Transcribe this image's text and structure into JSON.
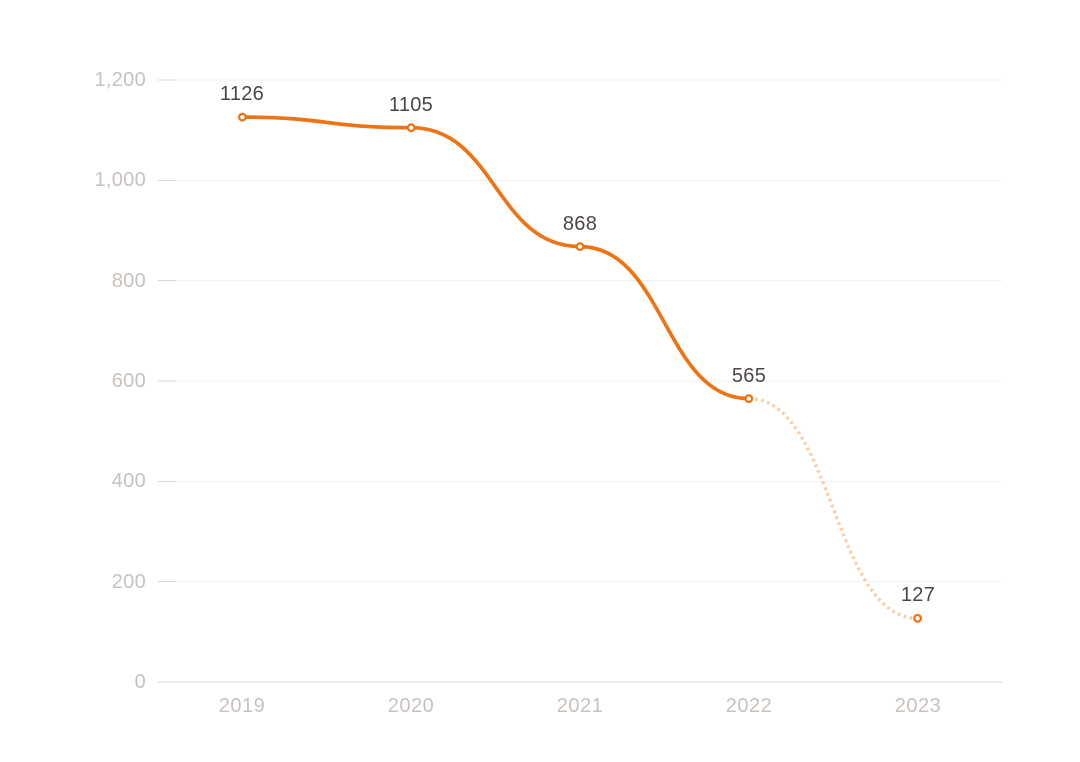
{
  "page": {
    "background": "#FFFFFF"
  },
  "chart_data": {
    "type": "line",
    "title": "",
    "xlabel": "",
    "ylabel": "",
    "categories": [
      "2019",
      "2020",
      "2021",
      "2022",
      "2023"
    ],
    "values": [
      1126,
      1105,
      868,
      565,
      127
    ],
    "point_labels": [
      "1126",
      "1105",
      "868",
      "565",
      "127"
    ],
    "y_axis": {
      "range": [
        0,
        1200
      ],
      "tick_values": [
        1200,
        1000,
        800,
        600,
        400,
        200,
        0
      ],
      "tick_labels": [
        "1,200",
        "1,000",
        "800",
        "600",
        "400",
        "200",
        "0"
      ]
    },
    "x_axis": {
      "tick_labels": [
        "2019",
        "2020",
        "2021",
        "2022",
        "2023"
      ]
    },
    "grid": "horizontal-only",
    "legend": "none",
    "line_segments": {
      "solid": {
        "from": "2019",
        "to": "2022"
      },
      "dotted_projection": {
        "from": "2022",
        "to": "2023"
      }
    },
    "colors": {
      "line_solid": "#ED7414",
      "line_dotted": "#F8D0A8",
      "marker_stroke": "#ED7414",
      "marker_fill": "#FFFFFF",
      "gridline": "#F2F0EE",
      "tick_mark": "#D9D5D1",
      "axis_line": "#D9D5D1",
      "axis_label": "#C8C2BE",
      "value_label": "#4C4744",
      "background": "#FFFFFF"
    }
  }
}
